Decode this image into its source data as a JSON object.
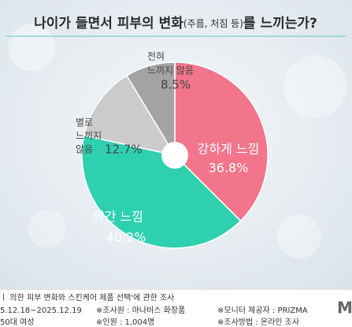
{
  "title": {
    "main": "나이가 들면서 피부의 변화",
    "note": "(주름, 처짐 등)",
    "end": "를 느끼는가?"
  },
  "chart_data": {
    "type": "pie",
    "categories": [
      [
        "강하게 느낌"
      ],
      [
        "약간 느낌"
      ],
      [
        "별로",
        "느끼지",
        "않음"
      ],
      [
        "전혀",
        "느끼지 않음"
      ]
    ],
    "values": [
      36.8,
      40.2,
      12.7,
      8.5
    ],
    "value_labels": [
      "36.8%",
      "40.2%",
      "12.7%",
      "8.5%"
    ],
    "colors": [
      "#f2758c",
      "#2fd0b0",
      "#cbcbcb",
      "#a3a3a3"
    ]
  },
  "footer": {
    "survey": "ㅣ 의한 피부 변화와 스킨케어 제품 선택'에 관한 조사",
    "period": "5.12.18~2025.12.19",
    "target": "50대 여성",
    "researcher": "※조사원 : 마나비스 화장품",
    "count": "※인원 : 1,004명",
    "provider": "※모니터 제공자 : PRIZMA",
    "method": "※조사방법 : 온라인 조사",
    "logo": "M"
  }
}
